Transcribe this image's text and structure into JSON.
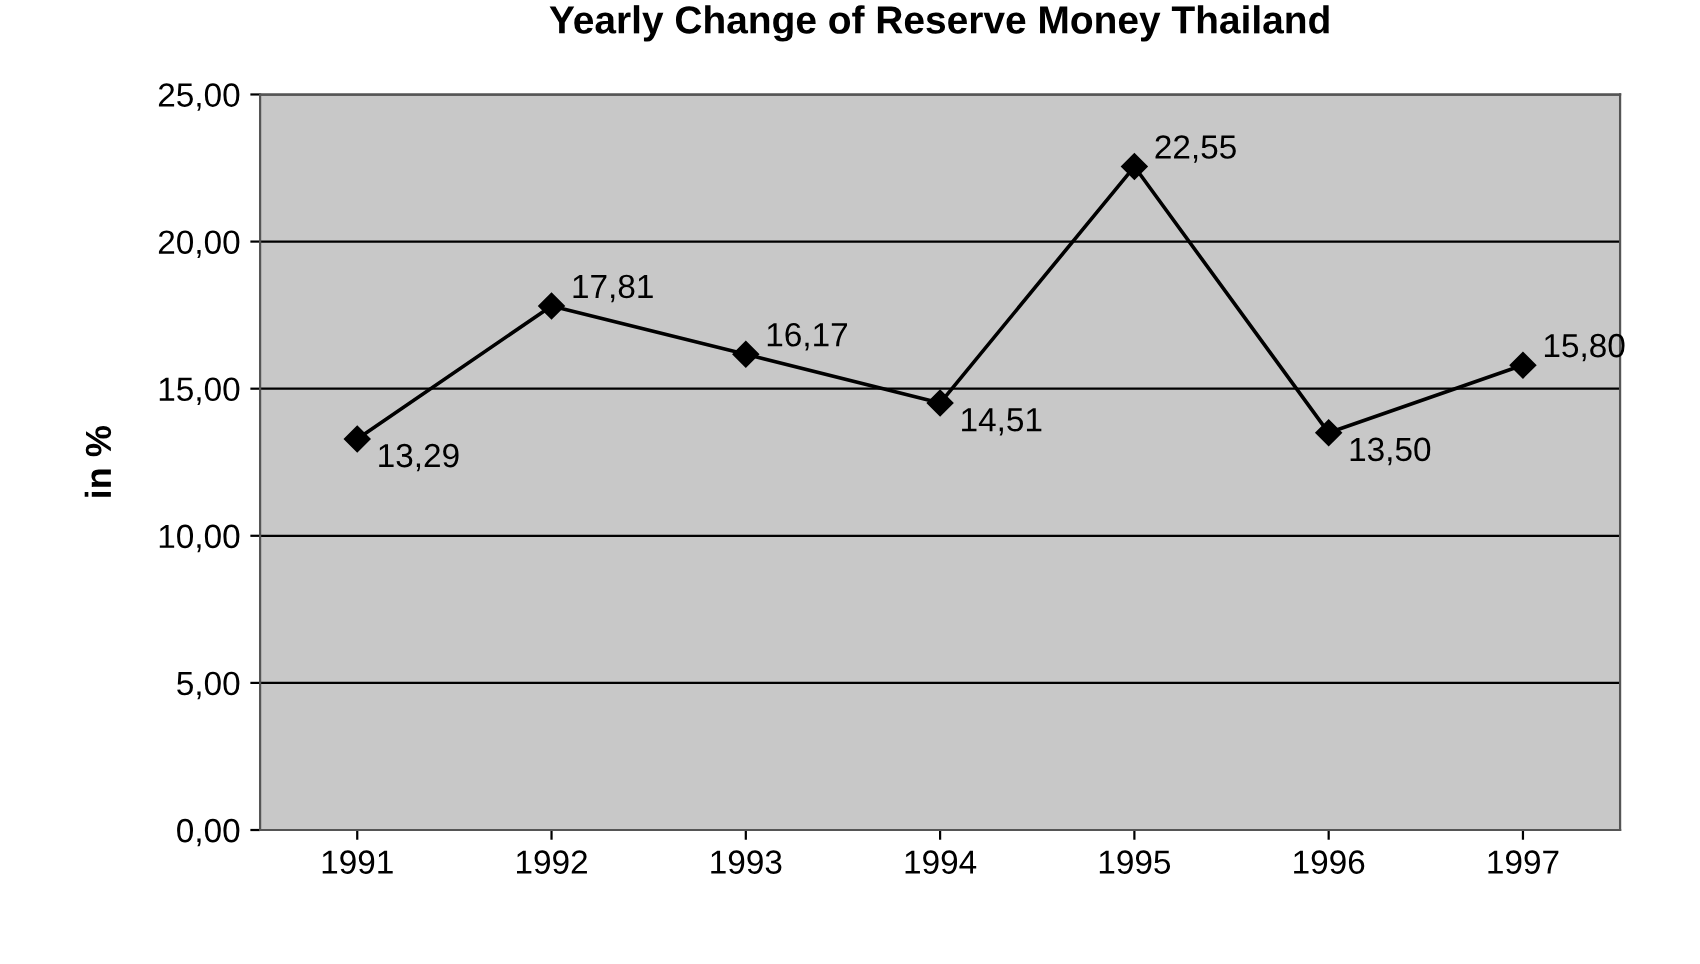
{
  "chart_data": {
    "type": "line",
    "title": "Yearly Change of Reserve Money Thailand",
    "ylabel": "in %",
    "categories": [
      "1991",
      "1992",
      "1993",
      "1994",
      "1995",
      "1996",
      "1997"
    ],
    "series": [
      {
        "color": "#000000",
        "values": [
          13.29,
          17.81,
          16.17,
          14.51,
          22.55,
          13.5,
          15.8
        ],
        "value_labels": [
          "13,29",
          "17,81",
          "16,17",
          "14,51",
          "22,55",
          "13,50",
          "15,80"
        ]
      }
    ],
    "ylim": [
      0,
      25
    ],
    "yticks": [
      {
        "value": 0,
        "label": "0,00"
      },
      {
        "value": 5,
        "label": "5,00"
      },
      {
        "value": 10,
        "label": "10,00"
      },
      {
        "value": 15,
        "label": "15,00"
      },
      {
        "value": 20,
        "label": "20,00"
      },
      {
        "value": 25,
        "label": "25,00"
      }
    ],
    "grid": "y",
    "marker": "diamond",
    "line_style": "solid"
  }
}
